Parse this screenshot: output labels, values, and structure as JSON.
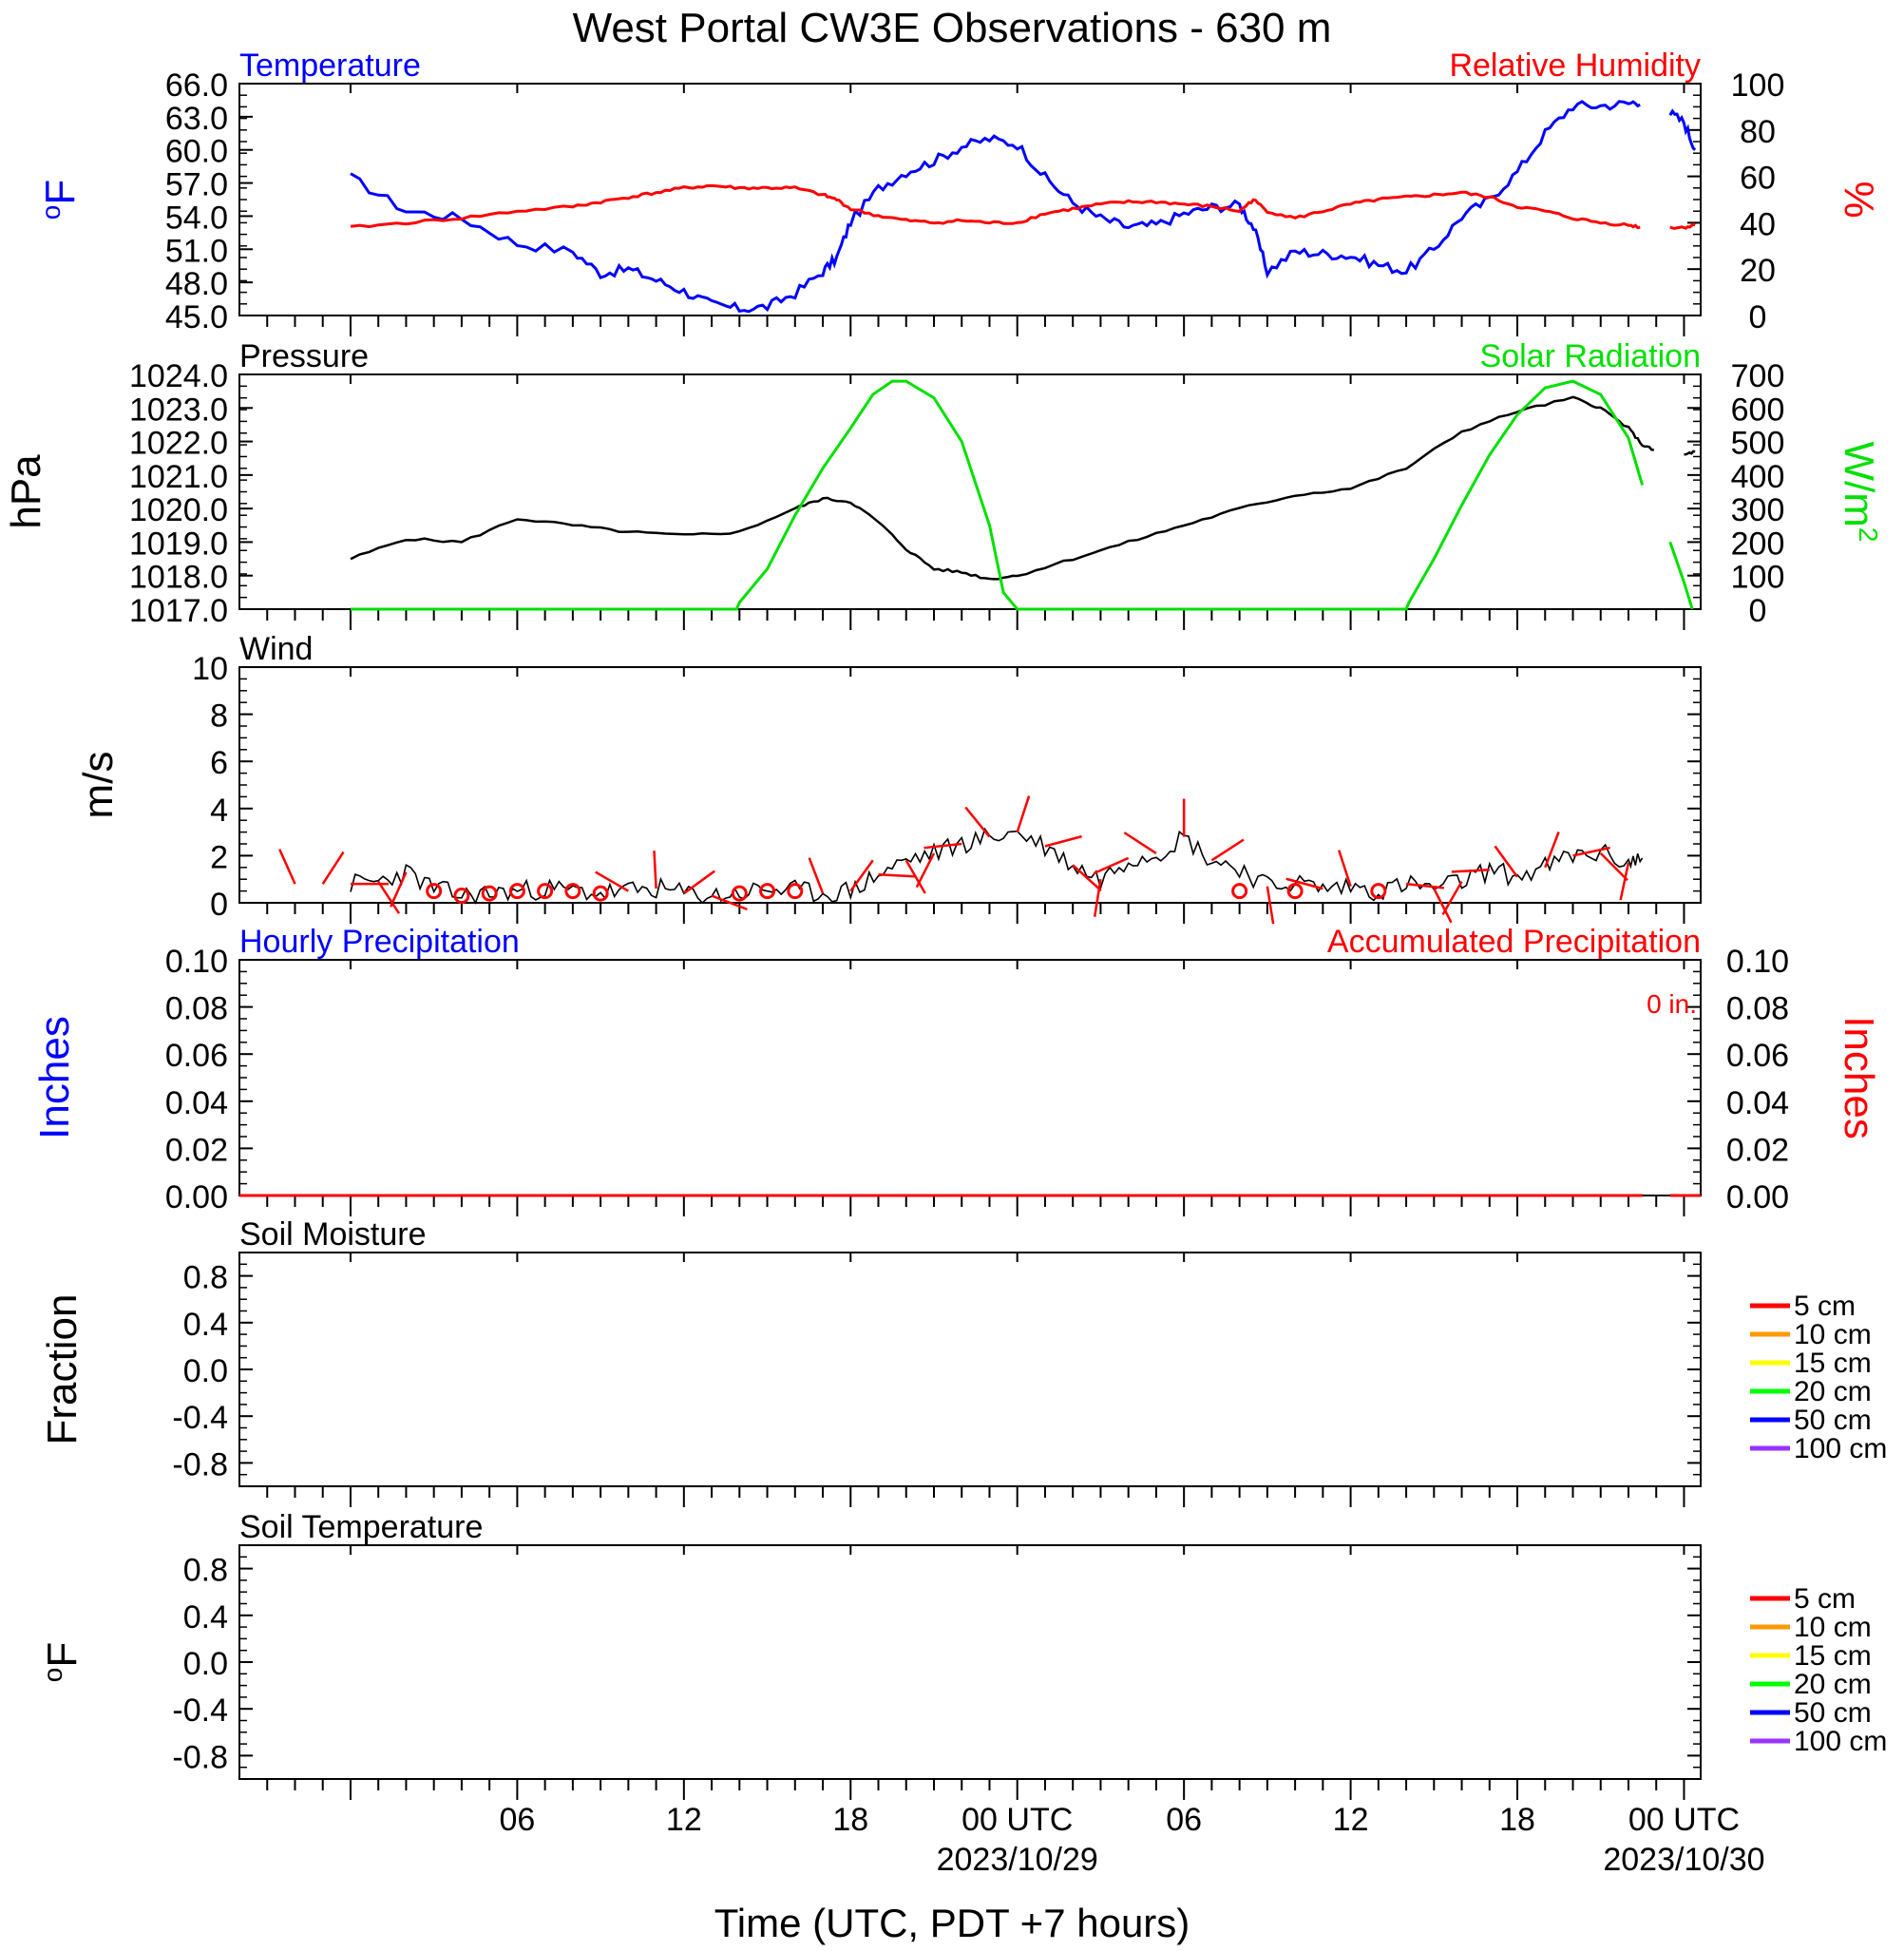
{
  "title": "West Portal CW3E Observations - 630 m",
  "x_axis": {
    "label": "Time (UTC, PDT +7 hours)",
    "tick_labels": [
      "06",
      "12",
      "18",
      "00 UTC",
      "06",
      "12",
      "18",
      "00 UTC"
    ],
    "date_labels": [
      "2023/10/29",
      "2023/10/30"
    ]
  },
  "colors": {
    "blue": "#0000ff",
    "red": "#ff0000",
    "green": "#00e000",
    "black": "#000000"
  },
  "chart_data": [
    {
      "type": "line",
      "left_title": "Temperature",
      "right_title": "Relative Humidity",
      "left_axis_label": "oF",
      "right_axis_label": "%",
      "left_ticks": [
        "66.0",
        "63.0",
        "60.0",
        "57.0",
        "54.0",
        "51.0",
        "48.0",
        "45.0"
      ],
      "right_ticks": [
        "100",
        "80",
        "60",
        "40",
        "20",
        "0"
      ],
      "ylim_left": [
        45,
        66
      ],
      "ylim_right": [
        0,
        100
      ],
      "x_hours": [
        0,
        2,
        4,
        6,
        8,
        9,
        10,
        11,
        12,
        13,
        14,
        15,
        16,
        17,
        17.5,
        18,
        19,
        20,
        21,
        22,
        23,
        24,
        25,
        26,
        27,
        28,
        29,
        30,
        31,
        32,
        32.5,
        33,
        34,
        35,
        36,
        37,
        38,
        39,
        40,
        41,
        42,
        43,
        44,
        45,
        46,
        46.5,
        47,
        47.5,
        48,
        48.4
      ],
      "temperature": [
        57.5,
        54.5,
        53.8,
        51.5,
        50.8,
        48.8,
        49.2,
        48.2,
        47.2,
        46.0,
        45.6,
        45.8,
        47.0,
        49.0,
        50.2,
        53.5,
        56.5,
        58.0,
        59.0,
        60.3,
        61.0,
        60.5,
        57.5,
        55.2,
        53.8,
        53.0,
        53.2,
        54.2,
        54.8,
        55.0,
        53.0,
        49.0,
        50.8,
        50.6,
        50.4,
        49.6,
        49.0,
        51.0,
        54.0,
        55.5,
        58.0,
        61.5,
        64.0,
        64.0,
        64.2,
        64.5,
        null,
        63.3,
        62.5,
        60.0
      ],
      "relative_humidity": [
        38,
        40,
        42,
        45,
        47,
        49,
        51,
        53,
        55,
        56,
        55,
        55,
        55,
        52,
        50,
        46,
        43,
        41,
        40,
        41,
        40,
        40,
        44,
        46,
        48,
        49,
        49,
        48,
        47,
        45,
        50,
        45,
        42,
        45,
        48,
        50,
        51,
        52,
        53,
        51,
        47,
        45,
        42,
        40,
        39,
        38,
        null,
        38,
        38,
        39
      ]
    },
    {
      "type": "line",
      "left_title": "Pressure",
      "right_title": "Solar Radiation",
      "left_axis_label": "hPa",
      "right_axis_label": "W/m",
      "left_ticks": [
        "1024.0",
        "1023.0",
        "1022.0",
        "1021.0",
        "1020.0",
        "1019.0",
        "1018.0",
        "1017.0"
      ],
      "right_ticks": [
        "700",
        "600",
        "500",
        "400",
        "300",
        "200",
        "100",
        "0"
      ],
      "ylim_left": [
        1017,
        1024
      ],
      "ylim_right": [
        0,
        700
      ],
      "x_hours": [
        0,
        2,
        4,
        6,
        8,
        10,
        12,
        14,
        16,
        17,
        18,
        19,
        20,
        21,
        22,
        23,
        24,
        26,
        28,
        30,
        32,
        34,
        36,
        38,
        40,
        42,
        44,
        45,
        46,
        46.5,
        47,
        47.5,
        48,
        48.4
      ],
      "pressure": [
        1018.5,
        1019.1,
        1019.0,
        1019.7,
        1019.5,
        1019.3,
        1019.2,
        1019.3,
        1020.0,
        1020.3,
        1020.2,
        1019.6,
        1018.8,
        1018.2,
        1018.1,
        1017.9,
        1018.0,
        1018.5,
        1019.0,
        1019.5,
        1020.0,
        1020.4,
        1020.6,
        1021.2,
        1022.3,
        1022.9,
        1023.3,
        1023.0,
        1022.4,
        1021.9,
        1021.7,
        null,
        1021.6,
        1021.7
      ],
      "solar_x": [
        0,
        13.9,
        14.0,
        15,
        16,
        17,
        18,
        18.8,
        19.5,
        20,
        21,
        22,
        23,
        23.5,
        24,
        26,
        38,
        38.1,
        39,
        40,
        41,
        42,
        43,
        44,
        45,
        46,
        46.5,
        47,
        47.5,
        48,
        48.3
      ],
      "solar": [
        0,
        0,
        20,
        120,
        280,
        420,
        540,
        640,
        680,
        680,
        630,
        500,
        250,
        50,
        0,
        0,
        0,
        20,
        150,
        310,
        460,
        580,
        660,
        680,
        640,
        510,
        370,
        null,
        200,
        80,
        0
      ]
    },
    {
      "type": "line",
      "left_title": "Wind",
      "left_axis_label": "m/s",
      "left_ticks": [
        "10",
        "8",
        "6",
        "4",
        "2",
        "0"
      ],
      "ylim_left": [
        0,
        10
      ],
      "x_hours": [
        0,
        1,
        2,
        3,
        4,
        5,
        6,
        7,
        8,
        9,
        10,
        11,
        12,
        13,
        14,
        15,
        16,
        17,
        18,
        19,
        20,
        21,
        22,
        23,
        24,
        25,
        26,
        27,
        28,
        29,
        30,
        31,
        32,
        33,
        34,
        35,
        36,
        37,
        38,
        39,
        40,
        41,
        42,
        43,
        44,
        45,
        46,
        46.5
      ],
      "wind_speed": [
        0.8,
        0.9,
        1.3,
        0.6,
        0.3,
        0.4,
        0.5,
        0.6,
        0.5,
        0.4,
        0.5,
        0.6,
        0.4,
        0.3,
        0.4,
        0.6,
        0.5,
        0.4,
        0.5,
        1.2,
        1.8,
        2.1,
        2.5,
        2.8,
        3.0,
        2.4,
        1.6,
        1.0,
        1.9,
        2.1,
        2.8,
        1.8,
        1.5,
        0.7,
        0.9,
        0.6,
        0.7,
        0.5,
        0.8,
        0.6,
        0.9,
        1.4,
        1.1,
        1.5,
        2.0,
        2.1,
        1.7,
        1.9
      ],
      "calm_markers_hours": [
        3,
        4,
        5,
        6,
        7,
        8,
        9,
        14,
        15,
        16,
        32,
        34,
        37
      ]
    },
    {
      "type": "line",
      "left_title": "Hourly Precipitation",
      "right_title": "Accumulated Precipitation",
      "accumulated_label": "0 in.",
      "left_axis_label": "Inches",
      "right_axis_label": "Inches",
      "left_ticks": [
        "0.10",
        "0.08",
        "0.06",
        "0.04",
        "0.02",
        "0.00"
      ],
      "right_ticks": [
        "0.10",
        "0.08",
        "0.06",
        "0.04",
        "0.02",
        "0.00"
      ],
      "ylim_left": [
        0,
        0.1
      ],
      "ylim_right": [
        0,
        0.1
      ],
      "hourly": 0.0,
      "accumulated": 0.0
    },
    {
      "type": "line",
      "left_title": "Soil Moisture",
      "left_axis_label": "Fraction",
      "left_ticks": [
        "0.8",
        "0.4",
        "0.0",
        "-0.4",
        "-0.8"
      ],
      "ylim_left": [
        -1,
        1
      ],
      "legend": [
        {
          "name": "5 cm",
          "color": "#ff0000"
        },
        {
          "name": "10 cm",
          "color": "#ff9900"
        },
        {
          "name": "15 cm",
          "color": "#ffff00"
        },
        {
          "name": "20 cm",
          "color": "#00ff00"
        },
        {
          "name": "50 cm",
          "color": "#0000ff"
        },
        {
          "name": "100 cm",
          "color": "#9933ff"
        }
      ]
    },
    {
      "type": "line",
      "left_title": "Soil Temperature",
      "left_axis_label": "oF",
      "left_ticks": [
        "0.8",
        "0.4",
        "0.0",
        "-0.4",
        "-0.8"
      ],
      "ylim_left": [
        -1,
        1
      ],
      "legend": [
        {
          "name": "5 cm",
          "color": "#ff0000"
        },
        {
          "name": "10 cm",
          "color": "#ff9900"
        },
        {
          "name": "15 cm",
          "color": "#ffff00"
        },
        {
          "name": "20 cm",
          "color": "#00ff00"
        },
        {
          "name": "50 cm",
          "color": "#0000ff"
        },
        {
          "name": "100 cm",
          "color": "#9933ff"
        }
      ]
    }
  ]
}
